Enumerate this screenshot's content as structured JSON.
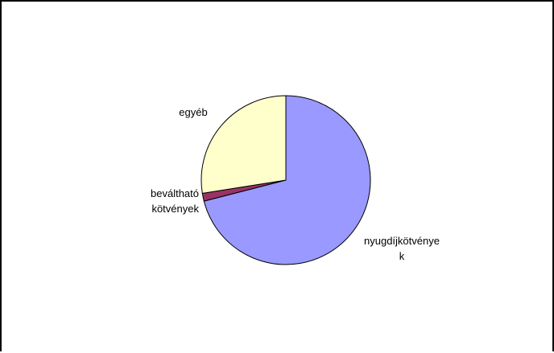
{
  "chart_data": {
    "type": "pie",
    "title": "",
    "start_angle_deg": 0,
    "direction": "clockwise",
    "border_color": "#000000",
    "slices": [
      {
        "label": [
          "nyugdíjkötvénye",
          "k"
        ],
        "value": 71,
        "color": "#9999FF"
      },
      {
        "label": [
          "beváltható",
          "kötvények"
        ],
        "value": 1.5,
        "color": "#993366"
      },
      {
        "label": [
          "egyéb"
        ],
        "value": 27.5,
        "color": "#FFFFCC"
      }
    ]
  }
}
